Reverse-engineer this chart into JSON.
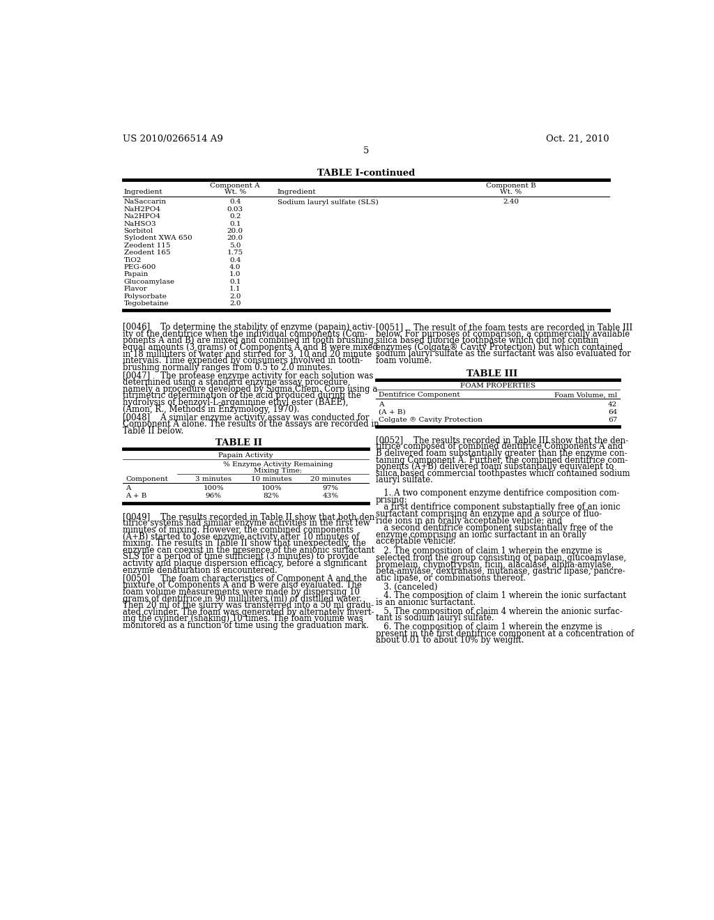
{
  "header_left": "US 2010/0266514 A9",
  "header_right": "Oct. 21, 2010",
  "page_number": "5",
  "bg_color": "#ffffff",
  "table1_title": "TABLE I-continued",
  "table1_rows": [
    [
      "NaSaccarin",
      "0.4",
      "Sodium lauryl sulfate (SLS)",
      "2.40"
    ],
    [
      "NaH2PO4",
      "0.03",
      "",
      ""
    ],
    [
      "Na2HPO4",
      "0.2",
      "",
      ""
    ],
    [
      "NaHSO3",
      "0.1",
      "",
      ""
    ],
    [
      "Sorbitol",
      "20.0",
      "",
      ""
    ],
    [
      "Sylodent XWA 650",
      "20.0",
      "",
      ""
    ],
    [
      "Zeodent 115",
      "5.0",
      "",
      ""
    ],
    [
      "Zeodent 165",
      "1.75",
      "",
      ""
    ],
    [
      "TiO2",
      "0.4",
      "",
      ""
    ],
    [
      "PEG-600",
      "4.0",
      "",
      ""
    ],
    [
      "Papain",
      "1.0",
      "",
      ""
    ],
    [
      "Glucoamylase",
      "0.1",
      "",
      ""
    ],
    [
      "Flavor",
      "1.1",
      "",
      ""
    ],
    [
      "Polysorbate",
      "2.0",
      "",
      ""
    ],
    [
      "Tegobetaine",
      "2.0",
      "",
      ""
    ]
  ],
  "para_0046_lines": [
    "[0046]    To determine the stability of enzyme (papain) activ-",
    "ity of the dentifrice when the individual components (Com-",
    "ponents A and B) are mixed and combined in tooth brushing,",
    "equal amounts (3 grams) of Components A and B were mixed",
    "in 18 milliliters of water and stirred for 3, 10 and 20 minute",
    "intervals. Time expended by consumers involved in tooth-",
    "brushing normally ranges from 0.5 to 2.0 minutes."
  ],
  "para_0047_lines": [
    "[0047]    The protease enzyme activity for each solution was",
    "determined using a standard enzyme assay procedure,",
    "namely a procedure developed by Sigma Chem. Corp using a",
    "titrimetric determination of the acid produced during the",
    "hydrolysis of benzoyl-L-arganinine ethyl ester (BAEE),",
    "(Amon, R., Methods in Enzymology, 1970)."
  ],
  "para_0048_lines": [
    "[0048]    A similar enzyme activity assay was conducted for",
    "Component A alone. The results of the assays are recorded in",
    "Table II below."
  ],
  "table2_title": "TABLE II",
  "table2_subtitle": "Papain Activity",
  "table2_sub2a": "% Enzyme Activity Remaining",
  "table2_sub2b": "Mixing Time:",
  "table2_rows": [
    [
      "A",
      "100%",
      "100%",
      "97%"
    ],
    [
      "A + B",
      "96%",
      "82%",
      "43%"
    ]
  ],
  "para_0049_lines": [
    "[0049]    The results recorded in Table II show that both den-",
    "tifrice systems had similar enzyme activities in the first few",
    "minutes of mixing. However, the combined components",
    "(A+B) started to lose enzyme activity after 10 minutes of",
    "mixing. The results in Table II show that unexpectedly, the",
    "enzyme can coexist in the presence of the anionic surfactant",
    "SLS for a period of time sufficient (3 minutes) to provide",
    "activity and plaque dispersion efficacy, before a significant",
    "enzyme denaturation is encountered."
  ],
  "para_0050_lines": [
    "[0050]    The foam characteristics of Component A and the",
    "mixture of Components A and B were also evaluated. The",
    "foam volume measurements were made by dispersing 10",
    "grams of dentifrice in 90 milliliters (ml) of distilled water.",
    "Then 20 ml of the slurry was transferred into a 50 ml gradu-",
    "ated cylinder. The foam was generated by alternately invert-",
    "ing the cylinder (shaking) 10 times. The foam volume was",
    "monitored as a function of time using the graduation mark."
  ],
  "para_0051_lines": [
    "[0051]    The result of the foam tests are recorded in Table III",
    "below. For purposes of comparison, a commercially available",
    "silica based fluoride toothpaste which did not contain",
    "enzymes (Colgate® Cavity Protection) but which contained",
    "sodium lauryl sulfate as the surfactant was also evaluated for",
    "foam volume."
  ],
  "table3_title": "TABLE III",
  "table3_subtitle": "FOAM PROPERTIES",
  "table3_rows": [
    [
      "A",
      "42"
    ],
    [
      "(A + B)",
      "64"
    ],
    [
      "Colgate ® Cavity Protection",
      "67"
    ]
  ],
  "para_0052_lines": [
    "[0052]    The results recorded in Table III show that the den-",
    "tifrice composed of combined dentifrice Components A and",
    "B delivered foam substantially greater than the enzyme con-",
    "taining Component A. Further, the combined dentifrice com-",
    "ponents (A+B) delivered foam substantially equivalent to",
    "silica based commercial toothpastes which contained sodium",
    "lauryl sulfate."
  ],
  "claim_1_lines": [
    "   1. A two component enzyme dentifrice composition com-",
    "prising:"
  ],
  "claim_1a_lines": [
    "   a first dentifrice component substantially free of an ionic",
    "surfactant comprising an enzyme and a source of fluo-",
    "ride ions in an orally acceptable vehicle; and"
  ],
  "claim_1b_lines": [
    "   a second dentifrice component substantially free of the",
    "enzyme comprising an ionic surfactant in an orally",
    "acceptable vehicle."
  ],
  "claim_2_lines": [
    "   2. The composition of claim 1 wherein the enzyme is",
    "selected from the group consisting of papain, glucoamylase,",
    "bromelain, chymotrypsin, ficin, alacalase, alpha-amylase,",
    "beta-amylase, dextranase, mutanase, gastric lipase, pancre-",
    "atic lipase, or combinations thereof."
  ],
  "claim_3_lines": [
    "   3. (canceled)"
  ],
  "claim_4_lines": [
    "   4. The composition of claim 1 wherein the ionic surfactant",
    "is an anionic surfactant."
  ],
  "claim_5_lines": [
    "   5. The composition of claim 4 wherein the anionic surfac-",
    "tant is sodium lauryl sulfate."
  ],
  "claim_6_lines": [
    "   6. The composition of claim 1 wherein the enzyme is",
    "present in the first dentifrice component at a concentration of",
    "about 0.01 to about 10% by weight."
  ]
}
